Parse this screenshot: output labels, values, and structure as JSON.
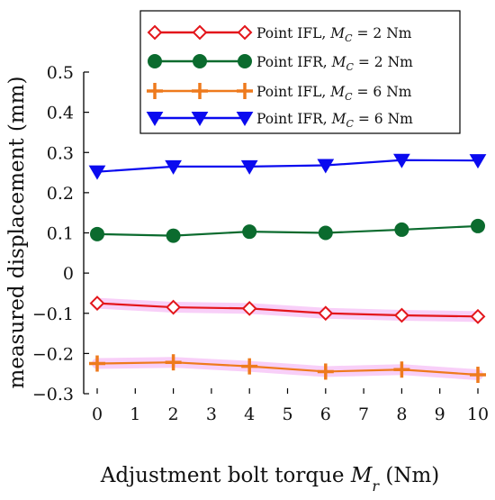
{
  "chart_data": {
    "type": "line",
    "xlabel_plain": "Adjustment bolt torque ",
    "xlabel_symbol": "M",
    "xlabel_subscript": "r",
    "xlabel_units": " (Nm)",
    "ylabel": "measured displacement  (mm)",
    "xlim": [
      0,
      10
    ],
    "ylim": [
      -0.3,
      0.5
    ],
    "x_ticks": [
      0,
      1,
      2,
      3,
      4,
      5,
      6,
      7,
      8,
      9,
      10
    ],
    "y_ticks": [
      -0.3,
      -0.2,
      -0.1,
      0,
      0.1,
      0.2,
      0.3,
      0.4,
      0.5
    ],
    "y_tick_labels": [
      "−0.3",
      "−0.2",
      "−0.1",
      "0",
      "0.1",
      "0.2",
      "0.3",
      "0.4",
      "0.5"
    ],
    "x": [
      0,
      2,
      4,
      6,
      8,
      10
    ],
    "grid": false,
    "legend_position": "top-right",
    "series": [
      {
        "name": "Point IFL, Mc = 2 Nm",
        "legend_prefix": "Point IFL, ",
        "legend_value": " = 2 Nm",
        "color": "#e3161b",
        "marker": "diamond",
        "values": [
          -0.075,
          -0.085,
          -0.088,
          -0.1,
          -0.105,
          -0.108
        ]
      },
      {
        "name": "Point IFR, Mc = 2 Nm",
        "legend_prefix": "Point IFR, ",
        "legend_value": " = 2 Nm",
        "color": "#0b6b2e",
        "marker": "circle",
        "values": [
          0.097,
          0.093,
          0.103,
          0.1,
          0.108,
          0.117
        ]
      },
      {
        "name": "Point IFL, Mc = 6 Nm",
        "legend_prefix": "Point IFL, ",
        "legend_value": " = 6 Nm",
        "color": "#ee7a1d",
        "marker": "plus",
        "values": [
          -0.225,
          -0.222,
          -0.232,
          -0.245,
          -0.24,
          -0.253
        ]
      },
      {
        "name": "Point IFR, Mc = 6 Nm",
        "legend_prefix": "Point IFR, ",
        "legend_value": " = 6 Nm",
        "color": "#0a0aef",
        "marker": "triangle-down",
        "values": [
          0.252,
          0.265,
          0.265,
          0.268,
          0.281,
          0.28
        ]
      }
    ],
    "series_legend_symbol": "M",
    "series_legend_subscript": "C",
    "highlight_color": "#f2a8f2"
  }
}
